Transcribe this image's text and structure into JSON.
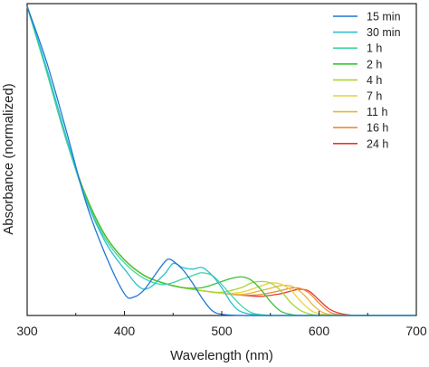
{
  "chart_data": {
    "type": "line",
    "xlabel": "Wavelength (nm)",
    "ylabel": "Absorbance (normalized)",
    "xlim": [
      300,
      700
    ],
    "xticks": [
      "300",
      "400",
      "500",
      "600",
      "700"
    ],
    "y_tick_labels": false,
    "grid": false,
    "legend_position": "top-right",
    "series": [
      {
        "name": "15 min",
        "color": "#1f77d4",
        "x": [
          300,
          320,
          340,
          360,
          380,
          400,
          410,
          420,
          430,
          440,
          445,
          450,
          460,
          470,
          480,
          490,
          500,
          520,
          540,
          560,
          580,
          600,
          620,
          640,
          660,
          680,
          700
        ],
        "y": [
          1.0,
          0.82,
          0.6,
          0.37,
          0.2,
          0.07,
          0.06,
          0.082,
          0.125,
          0.168,
          0.182,
          0.176,
          0.148,
          0.105,
          0.055,
          0.016,
          0.004,
          0,
          0,
          0,
          0,
          0,
          0,
          0,
          0,
          0,
          0
        ]
      },
      {
        "name": "30 min",
        "color": "#2bbfd0",
        "x": [
          300,
          320,
          340,
          360,
          380,
          400,
          420,
          440,
          450,
          460,
          470,
          480,
          490,
          500,
          510,
          520,
          540,
          560,
          580,
          600,
          620,
          640,
          660,
          680,
          700
        ],
        "y": [
          1.0,
          0.8,
          0.58,
          0.38,
          0.24,
          0.15,
          0.085,
          0.13,
          0.168,
          0.155,
          0.15,
          0.155,
          0.13,
          0.09,
          0.04,
          0.012,
          0,
          0,
          0,
          0,
          0,
          0,
          0,
          0,
          0
        ]
      },
      {
        "name": "1 h",
        "color": "#3ed6a4",
        "x": [
          300,
          320,
          340,
          360,
          380,
          400,
          420,
          440,
          460,
          475,
          480,
          490,
          500,
          510,
          520,
          530,
          540,
          560,
          580,
          600,
          620,
          640,
          660,
          680,
          700
        ],
        "y": [
          1.0,
          0.79,
          0.57,
          0.38,
          0.25,
          0.17,
          0.12,
          0.1,
          0.118,
          0.135,
          0.138,
          0.13,
          0.1,
          0.065,
          0.032,
          0.01,
          0.003,
          0,
          0,
          0,
          0,
          0,
          0,
          0,
          0
        ]
      },
      {
        "name": "2 h",
        "color": "#39c233",
        "x": [
          300,
          320,
          340,
          360,
          380,
          400,
          420,
          440,
          460,
          480,
          500,
          510,
          520,
          530,
          540,
          550,
          560,
          570,
          580,
          600,
          620,
          640,
          660,
          680,
          700
        ],
        "y": [
          1.0,
          0.79,
          0.57,
          0.39,
          0.26,
          0.18,
          0.13,
          0.105,
          0.09,
          0.09,
          0.11,
          0.12,
          0.125,
          0.115,
          0.085,
          0.045,
          0.015,
          0.004,
          0,
          0,
          0,
          0,
          0,
          0,
          0
        ]
      },
      {
        "name": "4 h",
        "color": "#a7d634",
        "x": [
          300,
          320,
          340,
          360,
          380,
          400,
          420,
          440,
          460,
          480,
          500,
          520,
          530,
          540,
          550,
          560,
          570,
          580,
          590,
          600,
          620,
          640,
          660,
          680,
          700
        ],
        "y": [
          1.0,
          0.79,
          0.57,
          0.39,
          0.26,
          0.18,
          0.13,
          0.105,
          0.09,
          0.08,
          0.075,
          0.09,
          0.105,
          0.11,
          0.105,
          0.082,
          0.045,
          0.018,
          0.005,
          0,
          0,
          0,
          0,
          0,
          0
        ]
      },
      {
        "name": "7 h",
        "color": "#ead13c",
        "x": [
          300,
          320,
          340,
          360,
          380,
          400,
          420,
          440,
          460,
          480,
          500,
          520,
          540,
          550,
          560,
          570,
          580,
          590,
          600,
          620,
          640,
          660,
          680,
          700
        ],
        "y": [
          1.0,
          0.79,
          0.57,
          0.39,
          0.26,
          0.18,
          0.13,
          0.105,
          0.09,
          0.08,
          0.072,
          0.075,
          0.095,
          0.105,
          0.102,
          0.085,
          0.05,
          0.02,
          0.006,
          0,
          0,
          0,
          0,
          0
        ]
      },
      {
        "name": "11 h",
        "color": "#e8b43c",
        "x": [
          300,
          320,
          340,
          360,
          380,
          400,
          420,
          440,
          460,
          480,
          500,
          520,
          540,
          555,
          565,
          575,
          585,
          595,
          605,
          620,
          640,
          660,
          680,
          700
        ],
        "y": [
          1.0,
          0.79,
          0.57,
          0.39,
          0.26,
          0.18,
          0.13,
          0.105,
          0.09,
          0.08,
          0.072,
          0.068,
          0.08,
          0.092,
          0.098,
          0.09,
          0.065,
          0.03,
          0.008,
          0,
          0,
          0,
          0,
          0
        ]
      },
      {
        "name": "16 h",
        "color": "#ef8a3a",
        "x": [
          300,
          320,
          340,
          360,
          380,
          400,
          420,
          440,
          460,
          480,
          500,
          520,
          540,
          560,
          570,
          580,
          590,
          600,
          610,
          620,
          640,
          660,
          680,
          700
        ],
        "y": [
          1.0,
          0.79,
          0.57,
          0.39,
          0.26,
          0.18,
          0.13,
          0.105,
          0.09,
          0.08,
          0.072,
          0.066,
          0.068,
          0.08,
          0.088,
          0.088,
          0.072,
          0.04,
          0.013,
          0.003,
          0,
          0,
          0,
          0
        ]
      },
      {
        "name": "24 h",
        "color": "#e23a2a",
        "x": [
          300,
          320,
          340,
          360,
          380,
          400,
          420,
          440,
          460,
          480,
          500,
          520,
          540,
          560,
          570,
          580,
          590,
          600,
          610,
          620,
          630,
          640,
          660,
          680,
          700
        ],
        "y": [
          1.0,
          0.79,
          0.57,
          0.39,
          0.26,
          0.18,
          0.13,
          0.105,
          0.09,
          0.08,
          0.072,
          0.066,
          0.062,
          0.07,
          0.078,
          0.085,
          0.078,
          0.05,
          0.022,
          0.008,
          0.002,
          0,
          0,
          0,
          0
        ]
      }
    ]
  }
}
